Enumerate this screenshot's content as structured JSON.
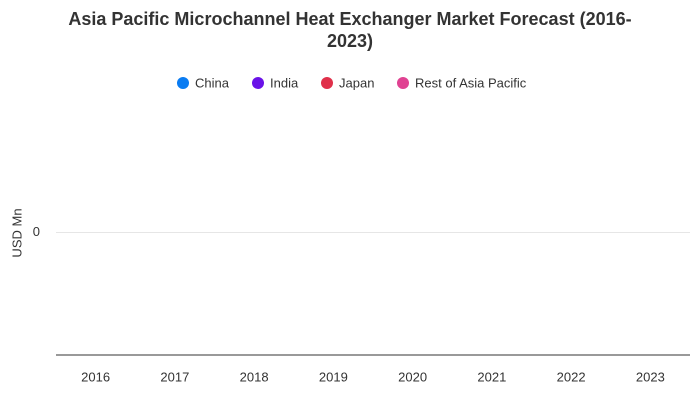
{
  "chart_data": {
    "type": "stacked_bar",
    "title": "Asia Pacific Microchannel Heat Exchanger Market Forecast (2016-2023)",
    "y_label": "USD Mn",
    "categories": [
      "2016",
      "2017",
      "2018",
      "2019",
      "2020",
      "2021",
      "2022",
      "2023"
    ],
    "series": [
      {
        "name": "China",
        "color": "#0a7cf2",
        "values": [
          0,
          0,
          0,
          0,
          0,
          0,
          0,
          0
        ]
      },
      {
        "name": "India",
        "color": "#6a12e8",
        "values": [
          0,
          0,
          0,
          0,
          0,
          0,
          0,
          0
        ]
      },
      {
        "name": "Japan",
        "color": "#e0304a",
        "values": [
          0,
          0,
          0,
          0,
          0,
          0,
          0,
          0
        ]
      },
      {
        "name": "Rest of Asia Pacific",
        "color": "#e04292",
        "values": [
          0,
          0,
          0,
          0,
          0,
          0,
          0,
          0
        ]
      }
    ],
    "ylim": [
      -1,
      1
    ],
    "yticks": [
      0
    ],
    "grid": true,
    "legend": "top"
  }
}
